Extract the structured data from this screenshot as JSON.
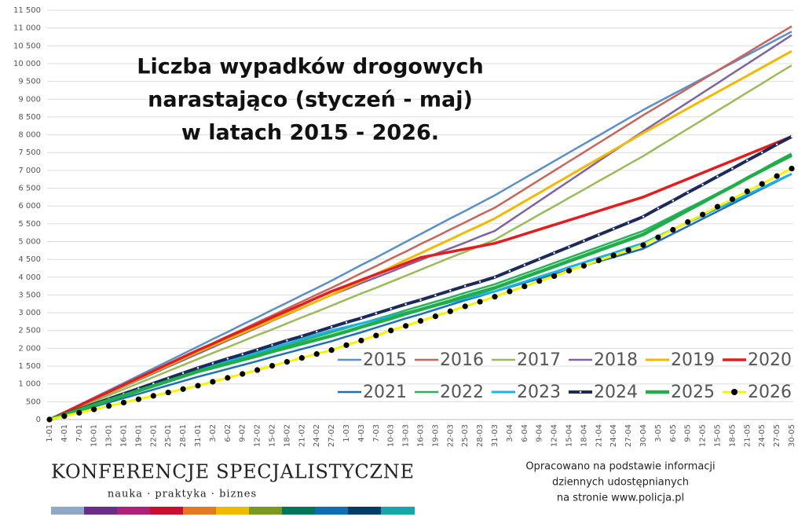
{
  "chart_data": {
    "type": "line",
    "title_lines": [
      "Liczba wypadków drogowych",
      "narastająco (styczeń - maj)",
      "w latach 2015 - 2026."
    ],
    "categories": [
      "1-01",
      "4-01",
      "7-01",
      "10-01",
      "13-01",
      "16-01",
      "19-01",
      "22-01",
      "25-01",
      "28-01",
      "31-01",
      "3-02",
      "6-02",
      "9-02",
      "12-02",
      "15-02",
      "18-02",
      "21-02",
      "24-02",
      "27-02",
      "1-03",
      "4-03",
      "7-03",
      "10-03",
      "13-03",
      "16-03",
      "19-03",
      "22-03",
      "25-03",
      "28-03",
      "31-03",
      "3-04",
      "6-04",
      "9-04",
      "12-04",
      "15-04",
      "18-04",
      "21-04",
      "24-04",
      "27-04",
      "30-04",
      "3-05",
      "6-05",
      "9-05",
      "12-05",
      "15-05",
      "18-05",
      "21-05",
      "24-05",
      "27-05",
      "30-05"
    ],
    "ylim": [
      0,
      11500
    ],
    "yticks": [
      0,
      500,
      {
        "value": 1000,
        "label": "1 000"
      },
      {
        "value": 1500,
        "label": "1 500"
      },
      {
        "value": 2000,
        "label": "2 000"
      },
      {
        "value": 2500,
        "label": "2 500"
      },
      {
        "value": 3000,
        "label": "3 000"
      },
      {
        "value": 3500,
        "label": "3 500"
      },
      {
        "value": 4000,
        "label": "4 000"
      },
      {
        "value": 4500,
        "label": "4 500"
      },
      {
        "value": 5000,
        "label": "5 000"
      },
      {
        "value": 5500,
        "label": "5 500"
      },
      {
        "value": 6000,
        "label": "6 000"
      },
      {
        "value": 6500,
        "label": "6 500"
      },
      {
        "value": 7000,
        "label": "7 000"
      },
      {
        "value": 7500,
        "label": "7 500"
      },
      {
        "value": 8000,
        "label": "8 000"
      },
      {
        "value": 8500,
        "label": "8 500"
      },
      {
        "value": 9000,
        "label": "9 000"
      },
      {
        "value": 9500,
        "label": "9 500"
      },
      {
        "value": 10000,
        "label": "10 000"
      },
      {
        "value": 10500,
        "label": "10 500"
      },
      {
        "value": 11000,
        "label": "11 000"
      },
      {
        "value": 11500,
        "label": "11 500"
      }
    ],
    "grid": true,
    "series": [
      {
        "name": "2015",
        "color": "#5b8fc8",
        "line_width": 2.5,
        "values": [
          0,
          205,
          410,
          615,
          820,
          1025,
          1230,
          1435,
          1640,
          1845,
          2050,
          2260,
          2460,
          2670,
          2870,
          3080,
          3280,
          3490,
          3690,
          3900,
          4120,
          4340,
          4550,
          4770,
          4990,
          5210,
          5430,
          5650,
          5860,
          6080,
          6300,
          6540,
          6780,
          7020,
          7260,
          7500,
          7740,
          7980,
          8220,
          8460,
          8700,
          8920,
          9140,
          9360,
          9580,
          9800,
          10020,
          10240,
          10460,
          10680,
          10900
        ]
      },
      {
        "name": "2016",
        "color": "#c8645a",
        "line_width": 2.5,
        "values": [
          0,
          195,
          390,
          585,
          780,
          975,
          1170,
          1365,
          1560,
          1755,
          1950,
          2140,
          2340,
          2530,
          2730,
          2920,
          3120,
          3310,
          3510,
          3700,
          3900,
          4110,
          4310,
          4520,
          4720,
          4930,
          5130,
          5340,
          5540,
          5750,
          5950,
          6210,
          6470,
          6730,
          6990,
          7250,
          7510,
          7770,
          8030,
          8290,
          8550,
          8800,
          9050,
          9300,
          9550,
          9800,
          10050,
          10300,
          10550,
          10800,
          11050
        ]
      },
      {
        "name": "2017",
        "color": "#9bbb59",
        "line_width": 2.5,
        "values": [
          0,
          170,
          340,
          510,
          680,
          850,
          1020,
          1190,
          1360,
          1530,
          1700,
          1870,
          2030,
          2200,
          2370,
          2530,
          2700,
          2870,
          3030,
          3200,
          3370,
          3540,
          3700,
          3870,
          4040,
          4210,
          4380,
          4550,
          4710,
          4880,
          5050,
          5290,
          5520,
          5760,
          5990,
          6230,
          6460,
          6700,
          6930,
          7170,
          7400,
          7660,
          7910,
          8170,
          8420,
          8680,
          8930,
          9190,
          9440,
          9700,
          9950
        ]
      },
      {
        "name": "2018",
        "color": "#8064a2",
        "line_width": 2.5,
        "values": [
          0,
          185,
          370,
          555,
          740,
          925,
          1110,
          1295,
          1480,
          1665,
          1850,
          2030,
          2220,
          2400,
          2580,
          2770,
          2950,
          3130,
          3320,
          3500,
          3660,
          3830,
          3990,
          4150,
          4320,
          4480,
          4650,
          4810,
          4970,
          5140,
          5300,
          5580,
          5860,
          6140,
          6420,
          6700,
          6980,
          7260,
          7540,
          7820,
          8100,
          8370,
          8640,
          8910,
          9180,
          9450,
          9720,
          9990,
          10260,
          10530,
          10800
        ]
      },
      {
        "name": "2019",
        "color": "#f5b800",
        "line_width": 3,
        "values": [
          0,
          190,
          380,
          570,
          760,
          950,
          1140,
          1330,
          1520,
          1710,
          1900,
          2080,
          2260,
          2430,
          2610,
          2790,
          2970,
          3140,
          3320,
          3500,
          3700,
          3890,
          4090,
          4280,
          4480,
          4670,
          4870,
          5060,
          5260,
          5450,
          5650,
          5890,
          6130,
          6370,
          6610,
          6850,
          7090,
          7330,
          7570,
          7810,
          8050,
          8280,
          8510,
          8740,
          8970,
          9200,
          9430,
          9660,
          9890,
          10120,
          10350
        ]
      },
      {
        "name": "2020",
        "color": "#e31d1d",
        "line_width": 3.5,
        "values": [
          0,
          195,
          390,
          585,
          780,
          975,
          1170,
          1365,
          1560,
          1755,
          1950,
          2130,
          2320,
          2500,
          2680,
          2870,
          3050,
          3230,
          3420,
          3600,
          3760,
          3920,
          4080,
          4230,
          4390,
          4550,
          4630,
          4710,
          4790,
          4870,
          4950,
          5080,
          5210,
          5340,
          5470,
          5600,
          5730,
          5860,
          5990,
          6120,
          6250,
          6420,
          6590,
          6760,
          6930,
          7100,
          7270,
          7440,
          7610,
          7780,
          7950
        ]
      },
      {
        "name": "2021",
        "color": "#1f6fb4",
        "line_width": 2.5,
        "values": [
          0,
          120,
          240,
          360,
          480,
          600,
          720,
          840,
          960,
          1080,
          1200,
          1310,
          1420,
          1530,
          1640,
          1760,
          1870,
          1980,
          2090,
          2200,
          2330,
          2450,
          2580,
          2710,
          2840,
          2960,
          3090,
          3220,
          3350,
          3470,
          3600,
          3720,
          3840,
          3960,
          4080,
          4200,
          4320,
          4440,
          4560,
          4680,
          4800,
          5010,
          5220,
          5430,
          5640,
          5850,
          6060,
          6270,
          6480,
          6690,
          6900
        ]
      },
      {
        "name": "2022",
        "color": "#2ab15a",
        "line_width": 2.5,
        "values": [
          0,
          135,
          270,
          405,
          540,
          675,
          810,
          945,
          1080,
          1215,
          1350,
          1470,
          1590,
          1720,
          1840,
          1960,
          2080,
          2210,
          2330,
          2450,
          2570,
          2700,
          2820,
          2940,
          3070,
          3190,
          3310,
          3430,
          3560,
          3680,
          3800,
          3950,
          4100,
          4250,
          4400,
          4550,
          4700,
          4850,
          5000,
          5150,
          5300,
          5510,
          5720,
          5930,
          6140,
          6350,
          6560,
          6770,
          6980,
          7190,
          7400
        ]
      },
      {
        "name": "2023",
        "color": "#1ab2e8",
        "line_width": 3,
        "values": [
          0,
          140,
          280,
          420,
          560,
          700,
          840,
          980,
          1120,
          1260,
          1400,
          1520,
          1640,
          1770,
          1890,
          2010,
          2130,
          2260,
          2380,
          2500,
          2600,
          2700,
          2800,
          2900,
          3000,
          3100,
          3200,
          3300,
          3400,
          3500,
          3600,
          3740,
          3870,
          4010,
          4140,
          4280,
          4410,
          4550,
          4680,
          4820,
          4950,
          5150,
          5340,
          5540,
          5730,
          5930,
          6120,
          6320,
          6510,
          6710,
          6900
        ]
      },
      {
        "name": "2024",
        "color": "#1b2a5a",
        "line_width": 4,
        "marker": "#ffffff",
        "values": [
          0,
          145,
          290,
          435,
          580,
          725,
          870,
          1015,
          1160,
          1305,
          1450,
          1580,
          1710,
          1830,
          1960,
          2090,
          2220,
          2340,
          2470,
          2600,
          2730,
          2850,
          2980,
          3110,
          3240,
          3360,
          3490,
          3620,
          3750,
          3870,
          4000,
          4170,
          4340,
          4510,
          4680,
          4850,
          5020,
          5190,
          5360,
          5530,
          5700,
          5930,
          6150,
          6380,
          6600,
          6830,
          7050,
          7280,
          7500,
          7730,
          7950
        ]
      },
      {
        "name": "2025",
        "color": "#1fae4a",
        "line_width": 4.5,
        "values": [
          0,
          135,
          270,
          405,
          540,
          675,
          810,
          945,
          1080,
          1215,
          1350,
          1460,
          1570,
          1680,
          1790,
          1910,
          2020,
          2130,
          2240,
          2350,
          2470,
          2600,
          2720,
          2840,
          2970,
          3090,
          3210,
          3330,
          3460,
          3580,
          3700,
          3850,
          4000,
          4150,
          4300,
          4450,
          4600,
          4750,
          4900,
          5050,
          5200,
          5430,
          5650,
          5880,
          6100,
          6330,
          6550,
          6780,
          7000,
          7230,
          7450
        ]
      },
      {
        "name": "2026",
        "color": "#f5f500",
        "line_width": 3,
        "marker": "#000000",
        "values": [
          0,
          95,
          190,
          285,
          380,
          475,
          570,
          665,
          760,
          855,
          950,
          1060,
          1170,
          1280,
          1390,
          1510,
          1620,
          1730,
          1840,
          1950,
          2090,
          2220,
          2360,
          2500,
          2630,
          2770,
          2900,
          3040,
          3180,
          3310,
          3450,
          3600,
          3740,
          3890,
          4030,
          4180,
          4320,
          4470,
          4610,
          4760,
          4900,
          5120,
          5330,
          5550,
          5760,
          5980,
          6190,
          6410,
          6620,
          6840,
          7050
        ]
      }
    ]
  },
  "footer": {
    "brand": "KONFERENCJE SPECJALISTYCZNE",
    "tagline": "nauka · praktyka · biznes",
    "note_lines": [
      "Opracowano na podstawie informacji",
      "dziennych udostępnianych",
      "na stronie www.policja.pl"
    ]
  }
}
